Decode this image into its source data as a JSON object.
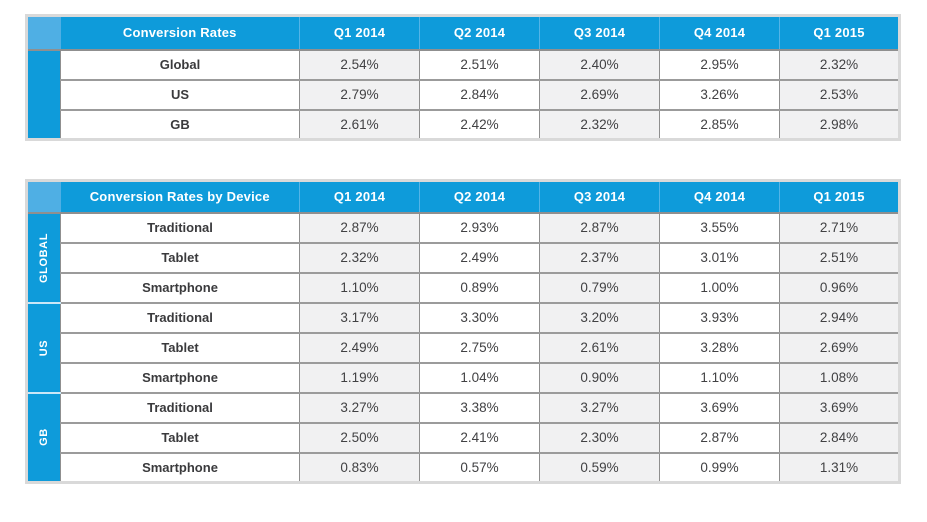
{
  "colors": {
    "header_blue": "#0E9BDA",
    "corner_blue": "#4FAFE4",
    "header_divider_blue": "#54B4E7",
    "shaded_column": "#F1F1F2",
    "inner_border": "#8F8F8F",
    "outer_frame": "#D9D9D9",
    "label_text": "#3A3A3C",
    "value_text": "#414143"
  },
  "chart_data": [
    {
      "type": "table",
      "title": "Conversion Rates",
      "quarter_headers": [
        "Q1 2014",
        "Q2 2014",
        "Q3 2014",
        "Q4 2014",
        "Q1 2015"
      ],
      "rows": [
        {
          "label": "Global",
          "values": [
            "2.54%",
            "2.51%",
            "2.40%",
            "2.95%",
            "2.32%"
          ]
        },
        {
          "label": "US",
          "values": [
            "2.79%",
            "2.84%",
            "2.69%",
            "3.26%",
            "2.53%"
          ]
        },
        {
          "label": "GB",
          "values": [
            "2.61%",
            "2.42%",
            "2.32%",
            "2.85%",
            "2.98%"
          ]
        }
      ]
    },
    {
      "type": "table",
      "title": "Conversion Rates by Device",
      "quarter_headers": [
        "Q1 2014",
        "Q2 2014",
        "Q3 2014",
        "Q4 2014",
        "Q1 2015"
      ],
      "groups": [
        {
          "label": "GLOBAL",
          "rows": [
            {
              "label": "Traditional",
              "values": [
                "2.87%",
                "2.93%",
                "2.87%",
                "3.55%",
                "2.71%"
              ]
            },
            {
              "label": "Tablet",
              "values": [
                "2.32%",
                "2.49%",
                "2.37%",
                "3.01%",
                "2.51%"
              ]
            },
            {
              "label": "Smartphone",
              "values": [
                "1.10%",
                "0.89%",
                "0.79%",
                "1.00%",
                "0.96%"
              ]
            }
          ]
        },
        {
          "label": "US",
          "rows": [
            {
              "label": "Traditional",
              "values": [
                "3.17%",
                "3.30%",
                "3.20%",
                "3.93%",
                "2.94%"
              ]
            },
            {
              "label": "Tablet",
              "values": [
                "2.49%",
                "2.75%",
                "2.61%",
                "3.28%",
                "2.69%"
              ]
            },
            {
              "label": "Smartphone",
              "values": [
                "1.19%",
                "1.04%",
                "0.90%",
                "1.10%",
                "1.08%"
              ]
            }
          ]
        },
        {
          "label": "GB",
          "rows": [
            {
              "label": "Traditional",
              "values": [
                "3.27%",
                "3.38%",
                "3.27%",
                "3.69%",
                "3.69%"
              ]
            },
            {
              "label": "Tablet",
              "values": [
                "2.50%",
                "2.41%",
                "2.30%",
                "2.87%",
                "2.84%"
              ]
            },
            {
              "label": "Smartphone",
              "values": [
                "0.83%",
                "0.57%",
                "0.59%",
                "0.99%",
                "1.31%"
              ]
            }
          ]
        }
      ]
    }
  ]
}
